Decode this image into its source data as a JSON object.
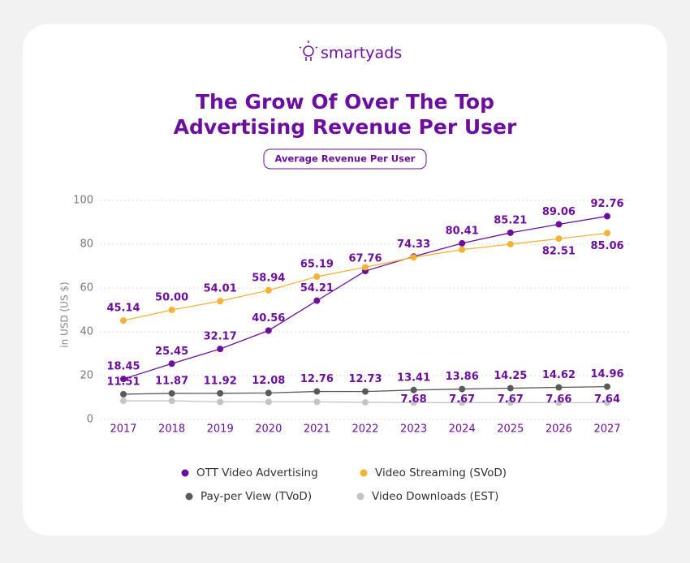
{
  "brand": "smartyads",
  "chart_data": {
    "type": "line",
    "title": [
      "The Grow Of Over The Top",
      "Advertising Revenue Per User"
    ],
    "subtitle": "Average  Revenue Per User",
    "y_label": "in USD (US $)",
    "categories": [
      "2017",
      "2018",
      "2019",
      "2020",
      "2021",
      "2022",
      "2023",
      "2024",
      "2025",
      "2026",
      "2027"
    ],
    "ylim": [
      0,
      100
    ],
    "yticks": [
      0,
      20,
      40,
      60,
      80,
      100
    ],
    "grid": true,
    "series": [
      {
        "name": "OTT Video Advertising",
        "color": "#6c0f9e",
        "values": [
          18.45,
          25.45,
          32.17,
          40.56,
          54.21,
          67.76,
          74.33,
          80.41,
          85.21,
          89.06,
          92.76
        ],
        "value_labels": [
          "18.45",
          "25.45",
          "32.17",
          "40.56",
          "54.21",
          "67.76",
          "74.33",
          "80.41",
          "85.21",
          "89.06",
          "92.76"
        ]
      },
      {
        "name": "Video Streaming (SVoD)",
        "color": "#f5b335",
        "values": [
          45.14,
          50,
          54.01,
          58.94,
          65.19,
          69.5,
          74,
          77.5,
          80,
          82.51,
          85.06
        ],
        "value_labels": [
          "45.14",
          "50.00",
          "54.01",
          "58.94",
          "65.19",
          null,
          null,
          null,
          null,
          "82.51",
          "85.06"
        ]
      },
      {
        "name": "Pay-per View (TVoD)",
        "color": "#5a5a5a",
        "values": [
          11.51,
          11.87,
          11.92,
          12.08,
          12.76,
          12.73,
          13.41,
          13.86,
          14.25,
          14.62,
          14.96
        ],
        "value_labels": [
          "11.51",
          "11.87",
          "11.92",
          "12.08",
          "12.76",
          "12.73",
          "13.41",
          "13.86",
          "14.25",
          "14.62",
          "14.96"
        ]
      },
      {
        "name": "Video Downloads (EST)",
        "color": "#c4c4c4",
        "values": [
          8.5,
          8.5,
          8,
          8,
          8,
          7.8,
          7.68,
          7.67,
          7.67,
          7.66,
          7.64
        ],
        "value_labels": [
          null,
          null,
          null,
          null,
          null,
          null,
          "7.68",
          "7.67",
          "7.67",
          "7.66",
          "7.64"
        ]
      }
    ]
  }
}
